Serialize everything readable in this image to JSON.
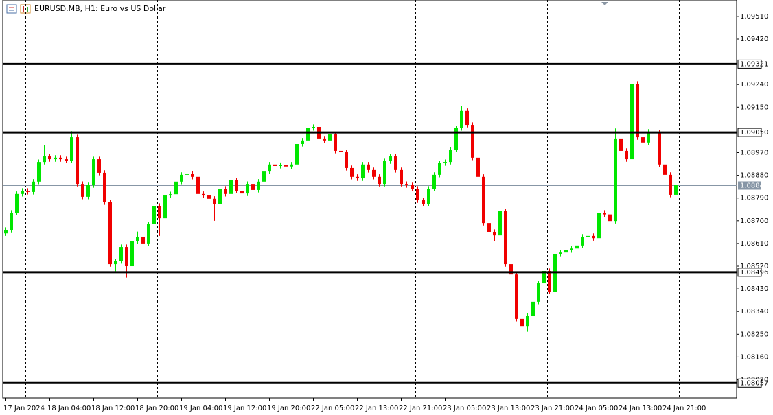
{
  "chart_data": {
    "type": "candlestick",
    "title": "EURUSD.MB, H1:  Euro vs US Dollar",
    "categories": [
      "17 Jan 2024",
      null,
      null,
      null,
      null,
      null,
      null,
      null,
      "18 Jan 04:00",
      null,
      null,
      null,
      null,
      null,
      null,
      null,
      "18 Jan 12:00",
      null,
      null,
      null,
      null,
      null,
      null,
      null,
      "18 Jan 20:00",
      null,
      null,
      null,
      null,
      null,
      null,
      null,
      "19 Jan 04:00",
      null,
      null,
      null,
      null,
      null,
      null,
      null,
      "19 Jan 12:00",
      null,
      null,
      null,
      null,
      null,
      null,
      null,
      "19 Jan 20:00",
      null,
      null,
      null,
      null,
      null,
      null,
      null,
      "22 Jan 05:00",
      null,
      null,
      null,
      null,
      null,
      null,
      null,
      "22 Jan 13:00",
      null,
      null,
      null,
      null,
      null,
      null,
      null,
      "22 Jan 21:00",
      null,
      null,
      null,
      null,
      null,
      null,
      null,
      "23 Jan 05:00",
      null,
      null,
      null,
      null,
      null,
      null,
      null,
      "23 Jan 13:00",
      null,
      null,
      null,
      null,
      null,
      null,
      null,
      "23 Jan 21:00",
      null,
      null,
      null,
      null,
      null,
      null,
      null,
      "24 Jan 05:00",
      null,
      null,
      null,
      null,
      null,
      null,
      null,
      "24 Jan 13:00",
      null,
      null,
      null,
      null,
      null,
      null,
      null,
      "24 Jan 21:00",
      null,
      null
    ],
    "open": [
      1.0865,
      1.08664,
      1.08732,
      1.08806,
      1.08819,
      1.08814,
      1.08855,
      1.08933,
      1.08955,
      1.08944,
      1.0895,
      1.08944,
      1.08938,
      1.09031,
      1.08846,
      1.08795,
      1.08841,
      1.08944,
      1.0889,
      1.08773,
      1.08528,
      1.0854,
      1.08596,
      1.0852,
      1.08618,
      1.08637,
      1.0861,
      1.08686,
      1.08759,
      1.0871,
      1.088,
      1.08805,
      1.08855,
      1.08882,
      1.08886,
      1.08874,
      1.08806,
      1.088,
      1.08787,
      1.08765,
      1.08827,
      1.08806,
      1.0886,
      1.08819,
      1.08808,
      1.08846,
      1.08822,
      1.08855,
      1.08895,
      1.08923,
      1.08917,
      1.08921,
      1.08915,
      1.08923,
      1.09004,
      1.09018,
      1.09067,
      1.09072,
      1.09026,
      1.09018,
      1.09042,
      1.08977,
      1.08972,
      1.08909,
      1.08874,
      1.08868,
      1.08923,
      1.08901,
      1.08874,
      1.08846,
      1.08936,
      1.08955,
      1.08901,
      1.08846,
      1.08841,
      1.08827,
      1.08781,
      1.08767,
      1.08827,
      1.08882,
      1.08928,
      1.08933,
      1.08982,
      1.09067,
      1.09135,
      1.0908,
      1.0895,
      1.08874,
      1.08691,
      1.08656,
      1.08642,
      1.08738,
      1.08528,
      1.08487,
      1.08311,
      1.08283,
      1.08324,
      1.08379,
      1.08452,
      1.08501,
      1.08419,
      1.08569,
      1.08574,
      1.08583,
      1.0859,
      1.08602,
      1.08637,
      1.0864,
      1.08631,
      1.08732,
      1.08725,
      1.08699,
      1.09026,
      1.08977,
      1.08944,
      1.09243,
      1.09031,
      1.0901,
      1.09053,
      1.0905,
      1.08923,
      1.08882,
      1.08803
    ],
    "high": [
      1.08674,
      1.08742,
      1.08816,
      1.08829,
      1.08829,
      1.08865,
      1.08943,
      1.09,
      1.08965,
      1.0896,
      1.0896,
      1.08954,
      1.09055,
      1.09041,
      1.08856,
      1.08851,
      1.08954,
      1.08954,
      1.089,
      1.08783,
      1.0855,
      1.08606,
      1.08606,
      1.08628,
      1.08657,
      1.08647,
      1.08696,
      1.08769,
      1.08769,
      1.0881,
      1.08815,
      1.08865,
      1.08892,
      1.08896,
      1.08896,
      1.08884,
      1.08816,
      1.0881,
      1.08797,
      1.08837,
      1.08837,
      1.0889,
      1.0887,
      1.08829,
      1.08856,
      1.08856,
      1.08865,
      1.08905,
      1.08933,
      1.08933,
      1.08931,
      1.08931,
      1.08933,
      1.09014,
      1.09028,
      1.09077,
      1.09082,
      1.09082,
      1.09036,
      1.0908,
      1.09052,
      1.08987,
      1.08982,
      1.08919,
      1.08884,
      1.08933,
      1.08933,
      1.08911,
      1.08884,
      1.08946,
      1.08965,
      1.08965,
      1.08911,
      1.08856,
      1.08851,
      1.08837,
      1.08791,
      1.08837,
      1.08892,
      1.08938,
      1.08943,
      1.08992,
      1.09077,
      1.09155,
      1.09145,
      1.0909,
      1.0896,
      1.08884,
      1.08701,
      1.08666,
      1.08748,
      1.08748,
      1.08538,
      1.08497,
      1.08321,
      1.08334,
      1.08389,
      1.08462,
      1.08511,
      1.08511,
      1.08579,
      1.08584,
      1.08593,
      1.086,
      1.08612,
      1.08647,
      1.0865,
      1.0865,
      1.08742,
      1.08742,
      1.08735,
      1.09066,
      1.09036,
      1.08987,
      1.09315,
      1.09253,
      1.09041,
      1.09063,
      1.09063,
      1.0906,
      1.08933,
      1.08892,
      1.08851
    ],
    "low": [
      1.0864,
      1.08654,
      1.08722,
      1.08796,
      1.08804,
      1.08804,
      1.08845,
      1.08923,
      1.08934,
      1.08934,
      1.08934,
      1.08928,
      1.08928,
      1.08836,
      1.08785,
      1.08785,
      1.08831,
      1.0888,
      1.08763,
      1.08518,
      1.085,
      1.0853,
      1.08475,
      1.0851,
      1.08608,
      1.086,
      1.086,
      1.08676,
      1.0864,
      1.087,
      1.0879,
      1.08795,
      1.08845,
      1.08872,
      1.08864,
      1.08796,
      1.0879,
      1.0876,
      1.087,
      1.08755,
      1.08796,
      1.08796,
      1.08809,
      1.0866,
      1.08798,
      1.087,
      1.08812,
      1.08845,
      1.08885,
      1.08907,
      1.08907,
      1.08905,
      1.08905,
      1.08913,
      1.08994,
      1.09008,
      1.09057,
      1.09016,
      1.09008,
      1.09008,
      1.08967,
      1.08962,
      1.08899,
      1.08864,
      1.08858,
      1.08858,
      1.08891,
      1.08864,
      1.08836,
      1.08836,
      1.08926,
      1.08891,
      1.08836,
      1.08831,
      1.08817,
      1.08771,
      1.08757,
      1.08757,
      1.08817,
      1.08872,
      1.08918,
      1.08923,
      1.08972,
      1.09057,
      1.0907,
      1.0894,
      1.08864,
      1.08681,
      1.08646,
      1.0862,
      1.08632,
      1.08518,
      1.0842,
      1.08301,
      1.08215,
      1.0826,
      1.08314,
      1.08369,
      1.08442,
      1.08409,
      1.08409,
      1.08559,
      1.08564,
      1.08573,
      1.0858,
      1.08592,
      1.08627,
      1.08621,
      1.08621,
      1.08715,
      1.08689,
      1.08689,
      1.08967,
      1.08934,
      1.08934,
      1.09021,
      1.0896,
      1.09,
      1.0904,
      1.08913,
      1.08872,
      1.08793,
      1.08793
    ],
    "close": [
      1.08664,
      1.08732,
      1.08806,
      1.08819,
      1.08814,
      1.08855,
      1.08933,
      1.08955,
      1.08944,
      1.0895,
      1.08944,
      1.08938,
      1.09031,
      1.08846,
      1.08795,
      1.08841,
      1.08944,
      1.0889,
      1.08773,
      1.08528,
      1.0854,
      1.08596,
      1.0852,
      1.08618,
      1.08637,
      1.0861,
      1.08686,
      1.08759,
      1.0871,
      1.088,
      1.08805,
      1.08855,
      1.08882,
      1.08886,
      1.08874,
      1.08806,
      1.088,
      1.08787,
      1.08765,
      1.08827,
      1.08806,
      1.0886,
      1.08819,
      1.08808,
      1.08846,
      1.08822,
      1.08855,
      1.08895,
      1.08923,
      1.08917,
      1.08921,
      1.08915,
      1.08923,
      1.09004,
      1.09018,
      1.09067,
      1.09072,
      1.09026,
      1.09018,
      1.09042,
      1.08977,
      1.08972,
      1.08909,
      1.08874,
      1.08868,
      1.08923,
      1.08901,
      1.08874,
      1.08846,
      1.08936,
      1.08955,
      1.08901,
      1.08846,
      1.08841,
      1.08827,
      1.08781,
      1.08767,
      1.08827,
      1.08882,
      1.08928,
      1.08933,
      1.08982,
      1.09067,
      1.09135,
      1.0908,
      1.0895,
      1.08874,
      1.08691,
      1.08656,
      1.08642,
      1.08738,
      1.08528,
      1.08487,
      1.08311,
      1.08283,
      1.08324,
      1.08379,
      1.08452,
      1.08501,
      1.08419,
      1.08569,
      1.08574,
      1.08583,
      1.0859,
      1.08602,
      1.08637,
      1.0864,
      1.08631,
      1.08732,
      1.08725,
      1.08699,
      1.09026,
      1.08977,
      1.08944,
      1.09243,
      1.09031,
      1.0901,
      1.09053,
      1.0905,
      1.08923,
      1.08882,
      1.08803,
      1.08841
    ],
    "up_color": "#00e600",
    "down_color": "#f00000",
    "ylim": [
      1.07998,
      1.09575
    ],
    "yticks": [
      {
        "value": 1.0951,
        "label": "1.09510"
      },
      {
        "value": 1.0942,
        "label": "1.09420"
      },
      {
        "value": 1.0924,
        "label": "1.09240"
      },
      {
        "value": 1.0915,
        "label": "1.09150"
      },
      {
        "value": 1.0897,
        "label": "1.08970"
      },
      {
        "value": 1.0888,
        "label": "1.08880"
      },
      {
        "value": 1.0879,
        "label": "1.08790"
      },
      {
        "value": 1.087,
        "label": "1.08700"
      },
      {
        "value": 1.0861,
        "label": "1.08610"
      },
      {
        "value": 1.0852,
        "label": "1.08520"
      },
      {
        "value": 1.0843,
        "label": "1.08430"
      },
      {
        "value": 1.0834,
        "label": "1.08340"
      },
      {
        "value": 1.0825,
        "label": "1.08250"
      },
      {
        "value": 1.0816,
        "label": "1.08160"
      },
      {
        "value": 1.0807,
        "label": "1.08070"
      }
    ],
    "levels": [
      1.09321,
      {
        "value": 1.0905,
        "label": "1.09050"
      },
      1.08496,
      1.08057
    ],
    "current_price": 1.08841
  }
}
